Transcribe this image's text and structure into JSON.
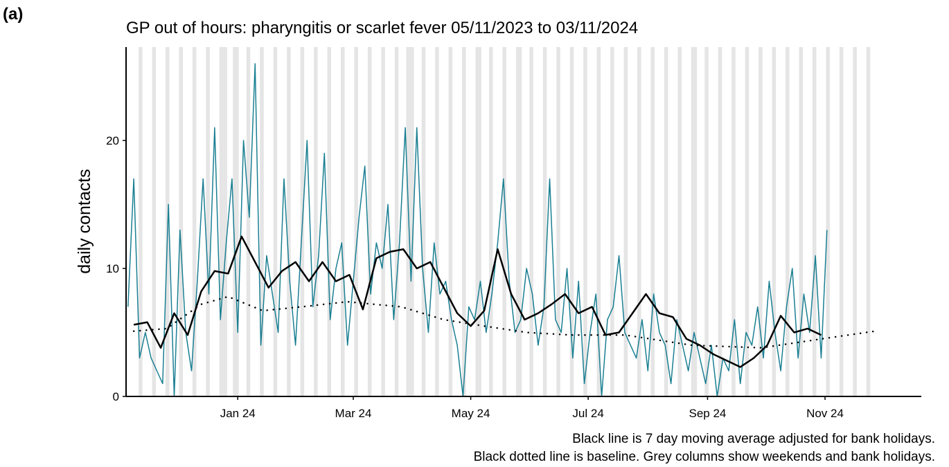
{
  "panel_label": "(a)",
  "chart_data": {
    "type": "line",
    "title": "GP out of hours: pharyngitis or scarlet fever 05/11/2023 to 03/11/2024",
    "y_label": "daily contacts",
    "captions": [
      "Black line is 7 day moving average adjusted for bank holidays.",
      "Black dotted line is baseline. Grey columns show weekends and bank holidays."
    ],
    "xlim": [
      -1,
      412
    ],
    "ylim": [
      0,
      27.3
    ],
    "yticks": [
      0,
      10,
      20
    ],
    "xticks": [
      {
        "value": 57,
        "label": "Jan 24"
      },
      {
        "value": 117,
        "label": "Mar 24"
      },
      {
        "value": 178,
        "label": "May 24"
      },
      {
        "value": 239,
        "label": "Jul 24"
      },
      {
        "value": 301,
        "label": "Sep 24"
      },
      {
        "value": 362,
        "label": "Nov 24"
      }
    ],
    "weekend_starts": [
      6,
      13,
      20,
      27,
      34,
      41,
      48,
      55,
      62,
      69,
      76,
      83,
      90,
      97,
      104,
      111,
      118,
      125,
      132,
      139,
      146,
      153,
      160,
      167,
      174,
      181,
      188,
      195,
      202,
      209,
      216,
      223,
      230,
      237,
      244,
      251,
      258,
      265,
      272,
      279,
      286,
      293,
      300,
      307,
      314,
      321,
      328,
      335,
      342,
      349,
      356,
      363,
      370,
      377,
      384
    ],
    "bank_holidays": [
      50,
      51,
      57,
      145,
      148,
      183,
      204,
      295
    ],
    "shade_color": "#e5e5e5",
    "series": [
      {
        "color": "#1a7f92",
        "style": "solid",
        "width": 1.5,
        "x": [
          0,
          3,
          6,
          9,
          12,
          15,
          18,
          21,
          24,
          27,
          30,
          33,
          36,
          39,
          42,
          45,
          48,
          51,
          54,
          57,
          60,
          63,
          66,
          69,
          72,
          75,
          78,
          81,
          84,
          87,
          90,
          93,
          96,
          99,
          102,
          105,
          108,
          111,
          114,
          117,
          120,
          123,
          126,
          129,
          132,
          135,
          138,
          141,
          144,
          147,
          150,
          153,
          156,
          159,
          162,
          165,
          168,
          171,
          174,
          177,
          180,
          183,
          186,
          189,
          192,
          195,
          198,
          201,
          204,
          207,
          210,
          213,
          216,
          219,
          222,
          225,
          228,
          231,
          234,
          237,
          240,
          243,
          246,
          249,
          252,
          255,
          258,
          261,
          264,
          267,
          270,
          273,
          276,
          279,
          282,
          285,
          288,
          291,
          294,
          297,
          300,
          303,
          306,
          309,
          312,
          315,
          318,
          321,
          324,
          327,
          330,
          333,
          336,
          339,
          342,
          345,
          348,
          351,
          354,
          357,
          360,
          363
        ],
        "values": [
          7,
          17,
          3,
          5,
          3,
          2,
          1,
          15,
          0,
          13,
          5,
          2,
          9,
          17,
          8,
          21,
          6,
          12,
          17,
          5,
          20,
          14,
          26,
          4,
          11,
          8,
          5,
          17,
          9,
          4,
          12,
          20,
          7,
          11,
          19,
          6,
          10,
          12,
          4,
          9,
          14,
          18,
          8,
          12,
          10,
          15,
          6,
          12,
          21,
          9,
          21,
          10,
          5,
          12,
          8,
          9,
          6,
          4,
          0,
          7,
          6,
          9,
          5,
          8,
          12,
          17,
          9,
          5,
          6,
          10,
          8,
          4,
          7,
          17,
          6,
          5,
          10,
          3,
          9,
          1,
          5,
          8,
          0,
          6,
          7,
          11,
          5,
          4,
          3,
          6,
          2,
          8,
          5,
          4,
          1,
          6,
          4,
          2,
          5,
          3,
          1,
          4,
          0,
          3,
          2,
          6,
          1,
          5,
          4,
          7,
          3,
          9,
          5,
          2,
          7,
          10,
          3,
          8,
          5,
          11,
          3,
          13
        ]
      },
      {
        "color": "#000000",
        "style": "solid",
        "width": 2.5,
        "x": [
          3,
          10,
          17,
          24,
          31,
          38,
          45,
          52,
          59,
          66,
          73,
          80,
          87,
          94,
          101,
          108,
          115,
          122,
          129,
          136,
          143,
          150,
          157,
          164,
          171,
          178,
          185,
          192,
          199,
          206,
          213,
          220,
          227,
          234,
          241,
          248,
          255,
          262,
          269,
          276,
          283,
          290,
          297,
          304,
          311,
          318,
          325,
          332,
          339,
          346,
          353,
          360
        ],
        "values": [
          5.6,
          5.8,
          3.8,
          6.5,
          4.8,
          8.2,
          9.8,
          9.6,
          12.5,
          10.5,
          8.5,
          9.8,
          10.5,
          9,
          10.5,
          9,
          9.5,
          6.8,
          10.8,
          11.3,
          11.5,
          10,
          10.5,
          8.5,
          6.5,
          5.5,
          6.7,
          11.5,
          8,
          6,
          6.5,
          7.2,
          8,
          6.5,
          7,
          4.8,
          5,
          6.5,
          8,
          6.5,
          6.2,
          4.5,
          4,
          3.3,
          2.8,
          2.3,
          3,
          4,
          6.3,
          5,
          5.3,
          4.8
        ]
      },
      {
        "color": "#000000",
        "style": "dotted",
        "width": 2.5,
        "x": [
          3,
          20,
          38,
          52,
          70,
          90,
          114,
          142,
          164,
          185,
          207,
          230,
          258,
          293,
          329,
          365,
          388
        ],
        "values": [
          5.1,
          5.3,
          7.2,
          7.8,
          6.7,
          7,
          7.4,
          7,
          6,
          5.5,
          5,
          4.8,
          4.8,
          4,
          3.8,
          4.6,
          5.1
        ]
      }
    ]
  }
}
